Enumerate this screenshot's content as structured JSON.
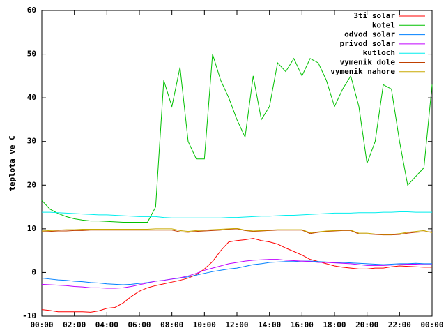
{
  "chart_data": {
    "type": "line",
    "y_label": "teplota ve C",
    "x": [
      0,
      0.5,
      1,
      1.5,
      2,
      2.5,
      3,
      3.5,
      4,
      4.5,
      5,
      5.5,
      6,
      6.5,
      7,
      7.5,
      8,
      8.5,
      9,
      9.5,
      10,
      10.5,
      11,
      11.5,
      12,
      12.5,
      13,
      13.5,
      14,
      14.5,
      15,
      15.5,
      16,
      16.5,
      17,
      17.5,
      18,
      18.5,
      19,
      19.5,
      20,
      20.5,
      21,
      21.5,
      22,
      22.5,
      23,
      23.5,
      24
    ],
    "xlim": [
      0,
      24
    ],
    "xticks": [
      {
        "value": 0,
        "label": "00:00"
      },
      {
        "value": 2,
        "label": "02:00"
      },
      {
        "value": 4,
        "label": "04:00"
      },
      {
        "value": 6,
        "label": "06:00"
      },
      {
        "value": 8,
        "label": "08:00"
      },
      {
        "value": 10,
        "label": "10:00"
      },
      {
        "value": 12,
        "label": "12:00"
      },
      {
        "value": 14,
        "label": "14:00"
      },
      {
        "value": 16,
        "label": "16:00"
      },
      {
        "value": 18,
        "label": "18:00"
      },
      {
        "value": 20,
        "label": "20:00"
      },
      {
        "value": 22,
        "label": "22:00"
      },
      {
        "value": 24,
        "label": "00:00"
      }
    ],
    "ylim": [
      -10,
      60
    ],
    "yticks": [
      -10,
      0,
      10,
      20,
      30,
      40,
      50,
      60
    ],
    "legend": "top-right",
    "series": [
      {
        "name": "3ti solar",
        "color": "#ff0000",
        "values": [
          -8.5,
          -8.7,
          -9,
          -9,
          -9,
          -9,
          -9.1,
          -8.8,
          -8.2,
          -8,
          -7,
          -5.5,
          -4.3,
          -3.5,
          -3,
          -2.6,
          -2.2,
          -1.8,
          -1.3,
          -0.5,
          0.8,
          2.5,
          5,
          7,
          7.3,
          7.5,
          7.8,
          7.3,
          7,
          6.5,
          5.6,
          4.8,
          4,
          3,
          2.5,
          2,
          1.5,
          1.2,
          1,
          0.8,
          0.8,
          1,
          1,
          1.3,
          1.5,
          1.4,
          1.3,
          1.2,
          1.2
        ]
      },
      {
        "name": "kotel",
        "color": "#00c000",
        "values": [
          16.5,
          14.5,
          13.5,
          12.8,
          12.3,
          12,
          11.8,
          11.8,
          11.7,
          11.6,
          11.5,
          11.5,
          11.5,
          11.5,
          15,
          44,
          38,
          47,
          30,
          26,
          26,
          50,
          44,
          40,
          35,
          31,
          45,
          35,
          38,
          48,
          46,
          49,
          45,
          49,
          48,
          44,
          38,
          42,
          45,
          38,
          25,
          30,
          43,
          42,
          30,
          20,
          22,
          24,
          43
        ]
      },
      {
        "name": "odvod solar",
        "color": "#0080ff",
        "values": [
          -1.3,
          -1.5,
          -1.7,
          -1.8,
          -2,
          -2.1,
          -2.3,
          -2.4,
          -2.6,
          -2.7,
          -2.8,
          -2.7,
          -2.5,
          -2.3,
          -2,
          -1.8,
          -1.5,
          -1.3,
          -1,
          -0.6,
          -0.2,
          0.2,
          0.5,
          0.8,
          1,
          1.4,
          1.8,
          2,
          2.3,
          2.4,
          2.5,
          2.5,
          2.6,
          2.6,
          2.5,
          2.4,
          2.3,
          2.3,
          2.2,
          2.1,
          2,
          1.9,
          1.8,
          1.9,
          2,
          2,
          2.1,
          2,
          2
        ]
      },
      {
        "name": "privod solar",
        "color": "#c000ff",
        "values": [
          -2.7,
          -2.8,
          -2.9,
          -3,
          -3.2,
          -3.3,
          -3.5,
          -3.5,
          -3.6,
          -3.6,
          -3.5,
          -3.2,
          -2.8,
          -2.4,
          -2,
          -1.8,
          -1.5,
          -1.2,
          -0.8,
          -0.2,
          0.5,
          1,
          1.5,
          2,
          2.3,
          2.6,
          2.8,
          2.9,
          3,
          3,
          2.8,
          2.7,
          2.6,
          2.5,
          2.3,
          2.3,
          2.2,
          2.1,
          2,
          1.8,
          1.6,
          1.6,
          1.6,
          1.7,
          1.8,
          1.9,
          1.9,
          1.8,
          1.8
        ]
      },
      {
        "name": "kutloch",
        "color": "#00eeee",
        "values": [
          13.8,
          13.8,
          13.7,
          13.6,
          13.5,
          13.4,
          13.3,
          13.2,
          13.2,
          13.1,
          13,
          12.9,
          12.8,
          12.8,
          12.8,
          12.6,
          12.5,
          12.5,
          12.5,
          12.5,
          12.5,
          12.5,
          12.5,
          12.6,
          12.6,
          12.7,
          12.8,
          12.9,
          12.9,
          13,
          13.1,
          13.1,
          13.2,
          13.3,
          13.4,
          13.5,
          13.6,
          13.6,
          13.6,
          13.7,
          13.7,
          13.7,
          13.8,
          13.8,
          13.9,
          13.9,
          13.8,
          13.8,
          13.8
        ]
      },
      {
        "name": "vymenik dole",
        "color": "#c04000",
        "values": [
          9.3,
          9.4,
          9.5,
          9.5,
          9.6,
          9.6,
          9.7,
          9.7,
          9.7,
          9.7,
          9.7,
          9.7,
          9.7,
          9.7,
          9.7,
          9.7,
          9.7,
          9.3,
          9.2,
          9.4,
          9.5,
          9.6,
          9.7,
          9.9,
          10,
          9.6,
          9.4,
          9.5,
          9.6,
          9.7,
          9.7,
          9.7,
          9.7,
          8.9,
          9.2,
          9.4,
          9.5,
          9.6,
          9.6,
          8.8,
          8.8,
          8.7,
          8.6,
          8.6,
          8.7,
          9,
          9.2,
          9.3,
          9.3
        ]
      },
      {
        "name": "vymenik nahore",
        "color": "#c8a800",
        "values": [
          9.5,
          9.6,
          9.7,
          9.8,
          9.8,
          9.9,
          9.9,
          9.9,
          9.9,
          9.9,
          9.9,
          9.9,
          9.9,
          9.9,
          10,
          10,
          10,
          9.6,
          9.4,
          9.6,
          9.7,
          9.8,
          9.9,
          10,
          10.1,
          9.7,
          9.5,
          9.6,
          9.7,
          9.8,
          9.8,
          9.8,
          9.8,
          9.1,
          9.3,
          9.5,
          9.6,
          9.7,
          9.7,
          9,
          9,
          8.8,
          8.7,
          8.7,
          8.9,
          9.2,
          9.4,
          9.6,
          9.1
        ]
      }
    ]
  }
}
